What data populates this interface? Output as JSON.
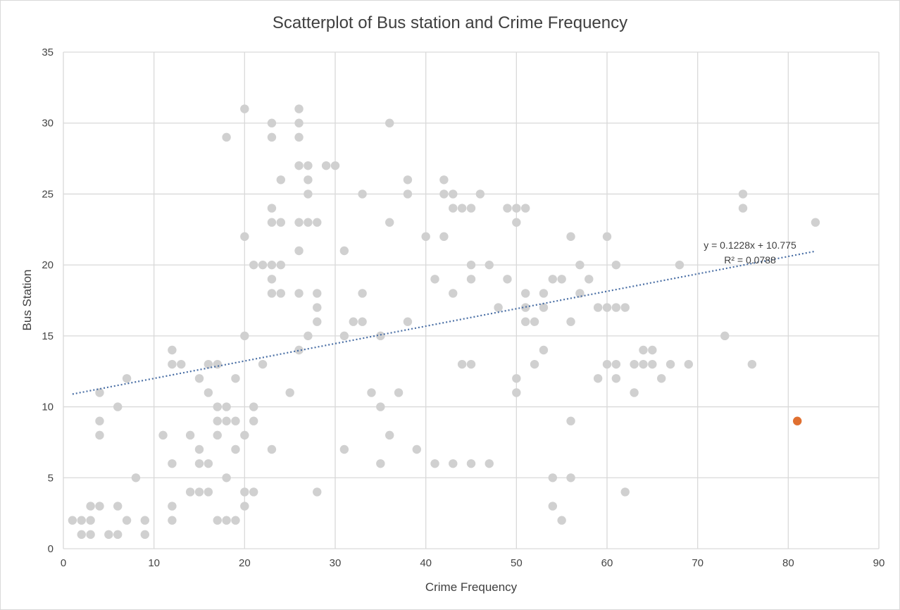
{
  "chart_data": {
    "type": "scatter",
    "title": "Scatterplot of Bus station and Crime Frequency",
    "xlabel": "Crime Frequency",
    "ylabel": "Bus  Station",
    "xlim": [
      0,
      90
    ],
    "ylim": [
      0,
      35
    ],
    "xticks": [
      0,
      10,
      20,
      30,
      40,
      50,
      60,
      70,
      80,
      90
    ],
    "yticks": [
      0,
      5,
      10,
      15,
      20,
      25,
      30,
      35
    ],
    "grid": true,
    "legend": "none",
    "colors": {
      "points": "#d0d0d0",
      "highlight": "#e07030",
      "trendline": "#4a6fa5",
      "grid": "#d9d9d9"
    },
    "series": [
      {
        "points": [
          [
            1,
            2
          ],
          [
            2,
            2
          ],
          [
            2,
            1
          ],
          [
            3,
            3
          ],
          [
            3,
            2
          ],
          [
            3,
            1
          ],
          [
            4,
            11
          ],
          [
            4,
            9
          ],
          [
            4,
            8
          ],
          [
            4,
            3
          ],
          [
            5,
            1
          ],
          [
            6,
            10
          ],
          [
            6,
            3
          ],
          [
            6,
            1
          ],
          [
            7,
            12
          ],
          [
            7,
            2
          ],
          [
            8,
            5
          ],
          [
            9,
            2
          ],
          [
            9,
            1
          ],
          [
            11,
            8
          ],
          [
            12,
            14
          ],
          [
            12,
            13
          ],
          [
            12,
            6
          ],
          [
            12,
            3
          ],
          [
            12,
            2
          ],
          [
            13,
            13
          ],
          [
            14,
            8
          ],
          [
            14,
            4
          ],
          [
            15,
            12
          ],
          [
            15,
            7
          ],
          [
            15,
            6
          ],
          [
            15,
            4
          ],
          [
            16,
            13
          ],
          [
            16,
            11
          ],
          [
            16,
            6
          ],
          [
            16,
            4
          ],
          [
            17,
            13
          ],
          [
            17,
            10
          ],
          [
            17,
            9
          ],
          [
            17,
            8
          ],
          [
            17,
            2
          ],
          [
            18,
            29
          ],
          [
            18,
            10
          ],
          [
            18,
            9
          ],
          [
            18,
            5
          ],
          [
            18,
            2
          ],
          [
            19,
            12
          ],
          [
            19,
            9
          ],
          [
            19,
            7
          ],
          [
            19,
            2
          ],
          [
            20,
            31
          ],
          [
            20,
            22
          ],
          [
            20,
            15
          ],
          [
            20,
            8
          ],
          [
            20,
            4
          ],
          [
            20,
            3
          ],
          [
            21,
            20
          ],
          [
            21,
            10
          ],
          [
            21,
            9
          ],
          [
            21,
            4
          ],
          [
            22,
            20
          ],
          [
            22,
            13
          ],
          [
            23,
            30
          ],
          [
            23,
            29
          ],
          [
            23,
            24
          ],
          [
            23,
            23
          ],
          [
            23,
            20
          ],
          [
            23,
            19
          ],
          [
            23,
            18
          ],
          [
            23,
            7
          ],
          [
            24,
            26
          ],
          [
            24,
            23
          ],
          [
            24,
            20
          ],
          [
            24,
            18
          ],
          [
            25,
            11
          ],
          [
            26,
            31
          ],
          [
            26,
            30
          ],
          [
            26,
            29
          ],
          [
            26,
            27
          ],
          [
            26,
            23
          ],
          [
            26,
            21
          ],
          [
            26,
            18
          ],
          [
            26,
            14
          ],
          [
            27,
            27
          ],
          [
            27,
            26
          ],
          [
            27,
            25
          ],
          [
            27,
            23
          ],
          [
            27,
            15
          ],
          [
            28,
            23
          ],
          [
            28,
            18
          ],
          [
            28,
            17
          ],
          [
            28,
            16
          ],
          [
            28,
            4
          ],
          [
            29,
            27
          ],
          [
            30,
            27
          ],
          [
            31,
            21
          ],
          [
            31,
            15
          ],
          [
            31,
            7
          ],
          [
            32,
            16
          ],
          [
            33,
            25
          ],
          [
            33,
            18
          ],
          [
            33,
            16
          ],
          [
            34,
            11
          ],
          [
            35,
            15
          ],
          [
            35,
            10
          ],
          [
            35,
            6
          ],
          [
            36,
            30
          ],
          [
            36,
            23
          ],
          [
            36,
            8
          ],
          [
            37,
            11
          ],
          [
            38,
            26
          ],
          [
            38,
            25
          ],
          [
            38,
            16
          ],
          [
            39,
            7
          ],
          [
            40,
            22
          ],
          [
            41,
            19
          ],
          [
            41,
            6
          ],
          [
            42,
            26
          ],
          [
            42,
            25
          ],
          [
            42,
            22
          ],
          [
            43,
            25
          ],
          [
            43,
            24
          ],
          [
            43,
            18
          ],
          [
            43,
            6
          ],
          [
            44,
            24
          ],
          [
            44,
            13
          ],
          [
            45,
            24
          ],
          [
            45,
            20
          ],
          [
            45,
            19
          ],
          [
            45,
            13
          ],
          [
            45,
            6
          ],
          [
            46,
            25
          ],
          [
            47,
            20
          ],
          [
            47,
            6
          ],
          [
            48,
            17
          ],
          [
            49,
            24
          ],
          [
            49,
            19
          ],
          [
            50,
            24
          ],
          [
            50,
            23
          ],
          [
            50,
            12
          ],
          [
            50,
            11
          ],
          [
            51,
            24
          ],
          [
            51,
            18
          ],
          [
            51,
            17
          ],
          [
            51,
            16
          ],
          [
            52,
            16
          ],
          [
            52,
            13
          ],
          [
            53,
            18
          ],
          [
            53,
            17
          ],
          [
            53,
            14
          ],
          [
            54,
            19
          ],
          [
            54,
            5
          ],
          [
            54,
            3
          ],
          [
            55,
            19
          ],
          [
            55,
            2
          ],
          [
            56,
            22
          ],
          [
            56,
            16
          ],
          [
            56,
            9
          ],
          [
            56,
            5
          ],
          [
            57,
            20
          ],
          [
            57,
            18
          ],
          [
            58,
            19
          ],
          [
            59,
            17
          ],
          [
            59,
            12
          ],
          [
            60,
            22
          ],
          [
            60,
            17
          ],
          [
            60,
            13
          ],
          [
            61,
            20
          ],
          [
            61,
            17
          ],
          [
            61,
            13
          ],
          [
            61,
            12
          ],
          [
            62,
            17
          ],
          [
            62,
            4
          ],
          [
            63,
            13
          ],
          [
            63,
            11
          ],
          [
            64,
            14
          ],
          [
            64,
            13
          ],
          [
            65,
            14
          ],
          [
            65,
            13
          ],
          [
            66,
            12
          ],
          [
            67,
            13
          ],
          [
            68,
            20
          ],
          [
            69,
            13
          ],
          [
            73,
            15
          ],
          [
            75,
            25
          ],
          [
            75,
            24
          ],
          [
            76,
            13
          ],
          [
            83,
            23
          ]
        ]
      },
      {
        "points": [
          [
            81,
            9
          ]
        ]
      }
    ],
    "trendline": {
      "type": "linear",
      "slope": 0.1228,
      "intercept": 10.775,
      "x_range": [
        1,
        83
      ],
      "equation": "y = 0.1228x + 10.775",
      "r2": "R² = 0.0788"
    }
  }
}
